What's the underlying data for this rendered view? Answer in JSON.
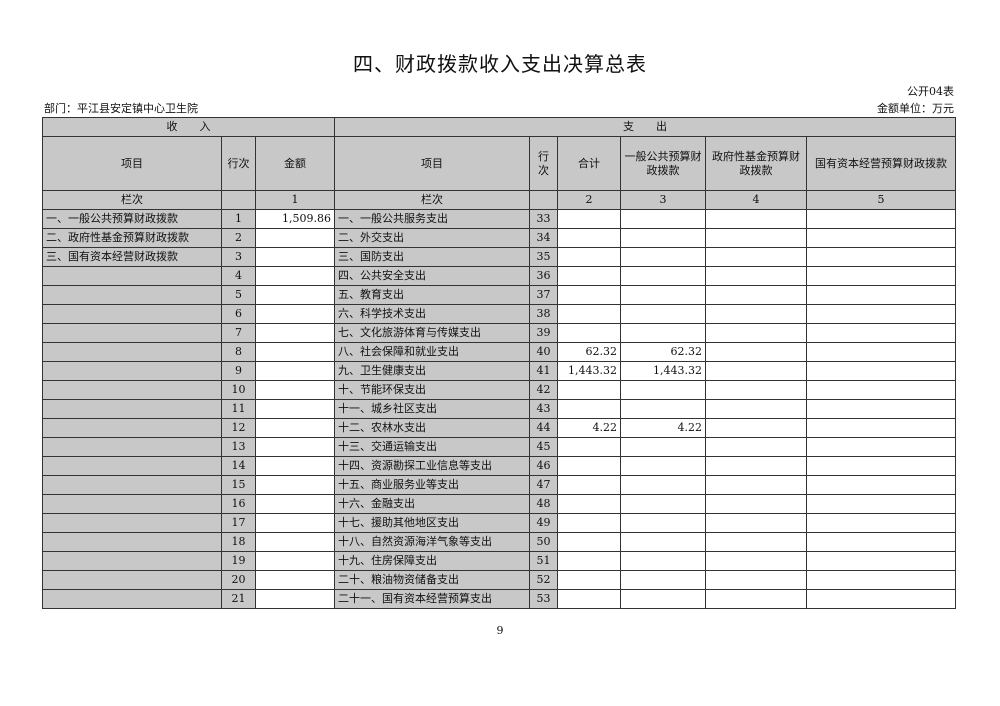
{
  "title": "四、财政拨款收入支出决算总表",
  "form_code": "公开04表",
  "department": "部门：平江县安定镇中心卫生院",
  "unit": "金额单位：万元",
  "headers": {
    "income": "收　　入",
    "expense": "支　　出",
    "item": "项目",
    "row_no": "行次",
    "amount": "金额",
    "total": "合计",
    "general": "一般公共预算财政拨款",
    "fund": "政府性基金预算财政拨款",
    "state": "国有资本经营预算财政拨款",
    "col_label": "栏次",
    "c1": "1",
    "c2": "2",
    "c3": "3",
    "c4": "4",
    "c5": "5"
  },
  "rows": [
    {
      "in_item": "一、一般公共预算财政拨款",
      "in_no": "1",
      "in_amt": "1,509.86",
      "ex_item": "一、一般公共服务支出",
      "ex_no": "33",
      "total": "",
      "general": ""
    },
    {
      "in_item": "二、政府性基金预算财政拨款",
      "in_no": "2",
      "in_amt": "",
      "ex_item": "二、外交支出",
      "ex_no": "34",
      "total": "",
      "general": ""
    },
    {
      "in_item": "三、国有资本经营财政拨款",
      "in_no": "3",
      "in_amt": "",
      "ex_item": "三、国防支出",
      "ex_no": "35",
      "total": "",
      "general": ""
    },
    {
      "in_item": "",
      "in_no": "4",
      "in_amt": "",
      "ex_item": "四、公共安全支出",
      "ex_no": "36",
      "total": "",
      "general": ""
    },
    {
      "in_item": "",
      "in_no": "5",
      "in_amt": "",
      "ex_item": "五、教育支出",
      "ex_no": "37",
      "total": "",
      "general": ""
    },
    {
      "in_item": "",
      "in_no": "6",
      "in_amt": "",
      "ex_item": "六、科学技术支出",
      "ex_no": "38",
      "total": "",
      "general": ""
    },
    {
      "in_item": "",
      "in_no": "7",
      "in_amt": "",
      "ex_item": "七、文化旅游体育与传媒支出",
      "ex_no": "39",
      "total": "",
      "general": ""
    },
    {
      "in_item": "",
      "in_no": "8",
      "in_amt": "",
      "ex_item": "八、社会保障和就业支出",
      "ex_no": "40",
      "total": "62.32",
      "general": "62.32"
    },
    {
      "in_item": "",
      "in_no": "9",
      "in_amt": "",
      "ex_item": "九、卫生健康支出",
      "ex_no": "41",
      "total": "1,443.32",
      "general": "1,443.32"
    },
    {
      "in_item": "",
      "in_no": "10",
      "in_amt": "",
      "ex_item": "十、节能环保支出",
      "ex_no": "42",
      "total": "",
      "general": ""
    },
    {
      "in_item": "",
      "in_no": "11",
      "in_amt": "",
      "ex_item": "十一、城乡社区支出",
      "ex_no": "43",
      "total": "",
      "general": ""
    },
    {
      "in_item": "",
      "in_no": "12",
      "in_amt": "",
      "ex_item": "十二、农林水支出",
      "ex_no": "44",
      "total": "4.22",
      "general": "4.22"
    },
    {
      "in_item": "",
      "in_no": "13",
      "in_amt": "",
      "ex_item": "十三、交通运输支出",
      "ex_no": "45",
      "total": "",
      "general": ""
    },
    {
      "in_item": "",
      "in_no": "14",
      "in_amt": "",
      "ex_item": "十四、资源勘探工业信息等支出",
      "ex_no": "46",
      "total": "",
      "general": ""
    },
    {
      "in_item": "",
      "in_no": "15",
      "in_amt": "",
      "ex_item": "十五、商业服务业等支出",
      "ex_no": "47",
      "total": "",
      "general": ""
    },
    {
      "in_item": "",
      "in_no": "16",
      "in_amt": "",
      "ex_item": "十六、金融支出",
      "ex_no": "48",
      "total": "",
      "general": ""
    },
    {
      "in_item": "",
      "in_no": "17",
      "in_amt": "",
      "ex_item": "十七、援助其他地区支出",
      "ex_no": "49",
      "total": "",
      "general": ""
    },
    {
      "in_item": "",
      "in_no": "18",
      "in_amt": "",
      "ex_item": "十八、自然资源海洋气象等支出",
      "ex_no": "50",
      "total": "",
      "general": ""
    },
    {
      "in_item": "",
      "in_no": "19",
      "in_amt": "",
      "ex_item": "十九、住房保障支出",
      "ex_no": "51",
      "total": "",
      "general": ""
    },
    {
      "in_item": "",
      "in_no": "20",
      "in_amt": "",
      "ex_item": "二十、粮油物资储备支出",
      "ex_no": "52",
      "total": "",
      "general": ""
    },
    {
      "in_item": "",
      "in_no": "21",
      "in_amt": "",
      "ex_item": "二十一、国有资本经营预算支出",
      "ex_no": "53",
      "total": "",
      "general": ""
    }
  ],
  "page_number": "9"
}
